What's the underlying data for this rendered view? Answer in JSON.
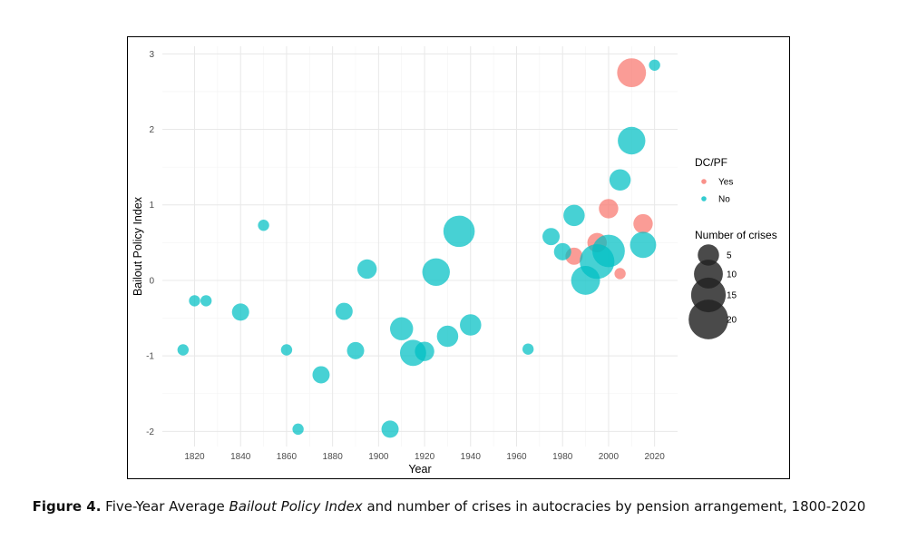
{
  "chart_data": {
    "type": "scatter",
    "xlabel": "Year",
    "ylabel": "Bailout Policy Index",
    "xlim": [
      1806,
      2030
    ],
    "ylim": [
      -2.2,
      3.1
    ],
    "x_ticks": [
      1820,
      1840,
      1860,
      1880,
      1900,
      1920,
      1940,
      1960,
      1980,
      2000,
      2020
    ],
    "y_ticks": [
      -2,
      -1,
      0,
      1,
      2,
      3
    ],
    "grid": true,
    "legend_position": "right",
    "color_legend": {
      "title": "DC/PF",
      "entries": [
        {
          "label": "Yes",
          "color": "#F8766D"
        },
        {
          "label": "No",
          "color": "#00BFC4"
        }
      ]
    },
    "size_legend": {
      "title": "Number of crises",
      "entries": [
        5,
        10,
        15,
        20
      ]
    },
    "series": [
      {
        "name": "Yes",
        "color": "#F8766D",
        "points": [
          {
            "x": 1985,
            "y": 0.32,
            "size": 3
          },
          {
            "x": 1995,
            "y": 0.5,
            "size": 4
          },
          {
            "x": 2000,
            "y": 0.95,
            "size": 4
          },
          {
            "x": 2005,
            "y": 0.09,
            "size": 1
          },
          {
            "x": 2010,
            "y": 2.75,
            "size": 10
          },
          {
            "x": 2015,
            "y": 0.75,
            "size": 4
          }
        ]
      },
      {
        "name": "No",
        "color": "#00BFC4",
        "points": [
          {
            "x": 1815,
            "y": -0.92,
            "size": 1
          },
          {
            "x": 1820,
            "y": -0.27,
            "size": 1
          },
          {
            "x": 1825,
            "y": -0.27,
            "size": 1
          },
          {
            "x": 1840,
            "y": -0.42,
            "size": 3
          },
          {
            "x": 1850,
            "y": 0.73,
            "size": 1
          },
          {
            "x": 1860,
            "y": -0.92,
            "size": 1
          },
          {
            "x": 1865,
            "y": -1.97,
            "size": 1
          },
          {
            "x": 1875,
            "y": -1.25,
            "size": 3
          },
          {
            "x": 1885,
            "y": -0.41,
            "size": 3
          },
          {
            "x": 1890,
            "y": -0.93,
            "size": 3
          },
          {
            "x": 1895,
            "y": 0.15,
            "size": 4
          },
          {
            "x": 1905,
            "y": -1.97,
            "size": 3
          },
          {
            "x": 1910,
            "y": -0.64,
            "size": 6
          },
          {
            "x": 1915,
            "y": -0.96,
            "size": 8
          },
          {
            "x": 1920,
            "y": -0.94,
            "size": 4
          },
          {
            "x": 1925,
            "y": 0.11,
            "size": 9
          },
          {
            "x": 1930,
            "y": -0.74,
            "size": 5
          },
          {
            "x": 1935,
            "y": 0.65,
            "size": 12
          },
          {
            "x": 1940,
            "y": -0.59,
            "size": 5
          },
          {
            "x": 1965,
            "y": -0.91,
            "size": 1
          },
          {
            "x": 1975,
            "y": 0.58,
            "size": 3
          },
          {
            "x": 1980,
            "y": 0.38,
            "size": 3
          },
          {
            "x": 1985,
            "y": 0.86,
            "size": 5
          },
          {
            "x": 1990,
            "y": 0.0,
            "size": 10
          },
          {
            "x": 1995,
            "y": 0.25,
            "size": 15
          },
          {
            "x": 2000,
            "y": 0.39,
            "size": 13
          },
          {
            "x": 2005,
            "y": 1.33,
            "size": 5
          },
          {
            "x": 2010,
            "y": 1.85,
            "size": 9
          },
          {
            "x": 2015,
            "y": 0.47,
            "size": 8
          },
          {
            "x": 2020,
            "y": 2.85,
            "size": 1
          }
        ]
      }
    ]
  },
  "caption": {
    "label": "Figure 4.",
    "text_before": " Five-Year Average ",
    "emphasis": "Bailout Policy Index",
    "text_after": " and number of crises in autocracies by pension arrangement, 1800-2020"
  }
}
